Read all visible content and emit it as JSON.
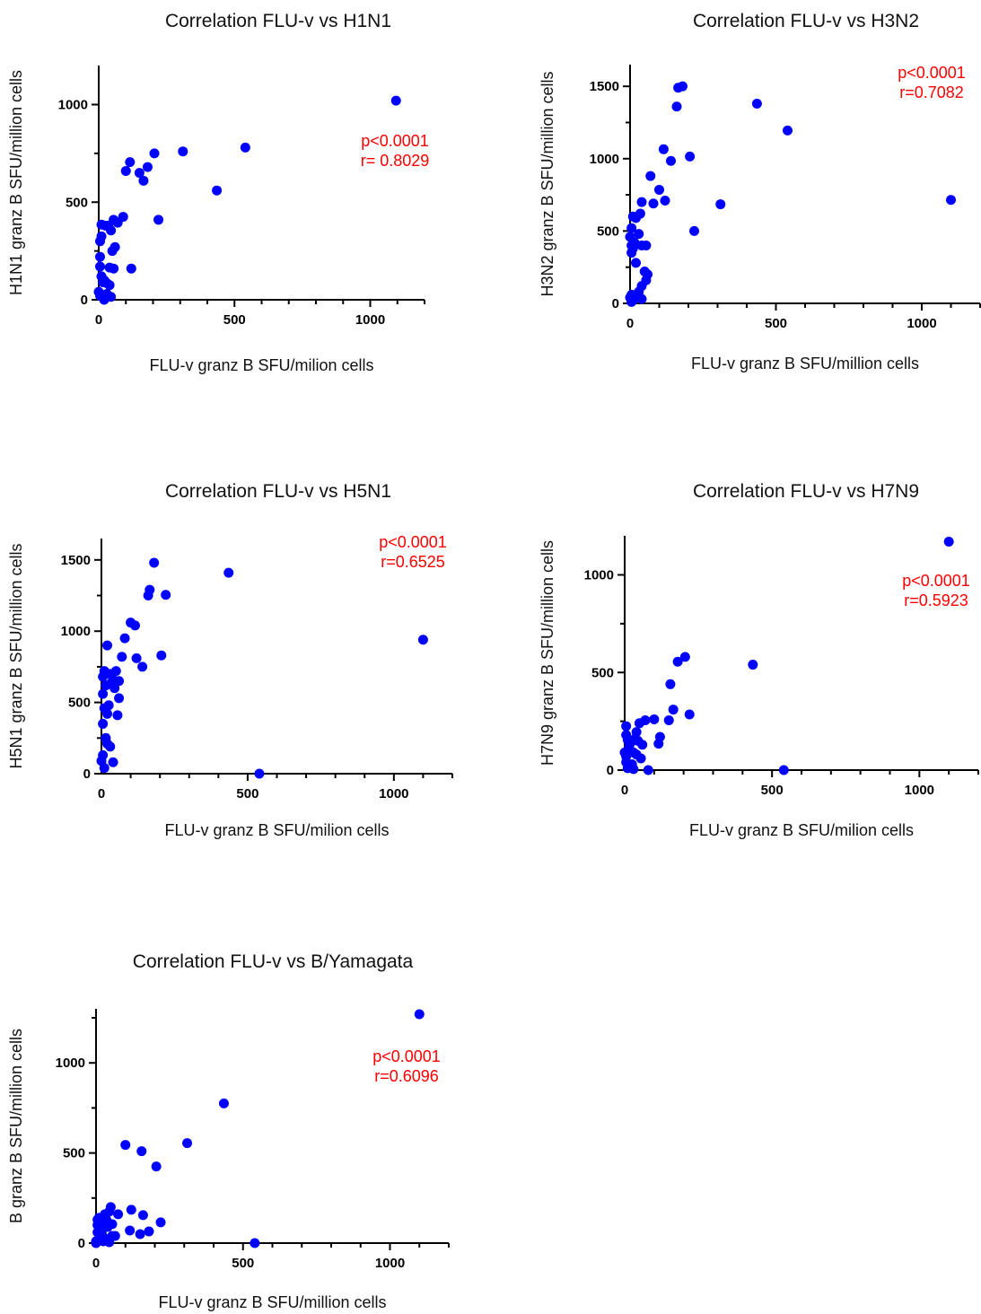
{
  "chart_data": [
    {
      "type": "scatter",
      "title": "Correlation FLU-v vs H1N1",
      "xlabel": "FLU-v granz B SFU/milion cells",
      "ylabel": "H1N1 granz B SFU/million cells",
      "xlim": [
        0,
        1200
      ],
      "ylim": [
        0,
        1200
      ],
      "xticks": [
        0,
        500,
        1000
      ],
      "yticks": [
        0,
        500,
        1000
      ],
      "annotations": [
        "p<0.0001",
        "r= 0.8029"
      ],
      "annotation_color": "#ff0000",
      "marker_color": "#0000ff",
      "series": [
        {
          "x": [
            1095,
            540,
            435,
            310,
            220,
            205,
            180,
            165,
            150,
            100,
            115,
            120,
            90,
            70,
            55,
            45,
            60,
            50,
            40,
            35,
            25,
            10,
            5,
            10,
            5,
            30,
            40,
            55,
            5,
            10,
            15,
            20,
            0,
            5,
            30,
            45,
            20
          ],
          "y": [
            1020,
            780,
            560,
            760,
            410,
            750,
            680,
            610,
            650,
            660,
            705,
            160,
            425,
            395,
            410,
            355,
            270,
            250,
            165,
            380,
            380,
            385,
            300,
            325,
            220,
            85,
            75,
            160,
            170,
            120,
            90,
            100,
            40,
            20,
            30,
            15,
            0
          ]
        }
      ]
    },
    {
      "type": "scatter",
      "title": "Correlation FLU-v vs H3N2",
      "xlabel": "FLU-v granz B SFU/million cells",
      "ylabel": "H3N2 granz B SFU/million cells",
      "xlim": [
        0,
        1200
      ],
      "ylim": [
        0,
        1650
      ],
      "xticks": [
        0,
        500,
        1000
      ],
      "yticks": [
        0,
        500,
        1000,
        1500
      ],
      "annotations": [
        "p<0.0001",
        "r=0.7082"
      ],
      "annotation_color": "#ff0000",
      "marker_color": "#0000ff",
      "series": [
        {
          "x": [
            1100,
            540,
            435,
            310,
            220,
            205,
            180,
            165,
            160,
            140,
            115,
            120,
            100,
            80,
            70,
            55,
            50,
            40,
            40,
            35,
            30,
            20,
            10,
            5,
            0,
            5,
            10,
            15,
            5,
            20,
            60,
            55,
            40,
            30,
            15,
            10,
            5,
            0,
            5,
            40
          ],
          "y": [
            715,
            1195,
            1380,
            685,
            500,
            1015,
            1500,
            1490,
            1360,
            985,
            1065,
            710,
            785,
            690,
            880,
            400,
            220,
            400,
            700,
            620,
            480,
            590,
            600,
            520,
            460,
            350,
            380,
            420,
            400,
            280,
            200,
            160,
            120,
            80,
            50,
            20,
            10,
            40,
            60,
            30
          ]
        }
      ]
    },
    {
      "type": "scatter",
      "title": "Correlation FLU-v vs H5N1",
      "xlabel": "FLU-v granz B SFU/milion cells",
      "ylabel": "H5N1 granz B SFU/million cells",
      "xlim": [
        0,
        1200
      ],
      "ylim": [
        0,
        1650
      ],
      "xticks": [
        0,
        500,
        1000
      ],
      "yticks": [
        0,
        500,
        1000,
        1500
      ],
      "annotations": [
        "p<0.0001",
        "r=0.6525"
      ],
      "annotation_color": "#ff0000",
      "marker_color": "#0000ff",
      "series": [
        {
          "x": [
            1100,
            540,
            435,
            220,
            205,
            180,
            165,
            160,
            140,
            120,
            115,
            100,
            80,
            70,
            60,
            50,
            45,
            40,
            35,
            30,
            20,
            10,
            5,
            5,
            15,
            20,
            10,
            5,
            25,
            55,
            60,
            40,
            5,
            15,
            20,
            10,
            30,
            0
          ],
          "y": [
            940,
            0,
            1410,
            1255,
            830,
            1480,
            1290,
            1250,
            750,
            810,
            1040,
            1060,
            950,
            820,
            650,
            720,
            600,
            660,
            640,
            700,
            900,
            720,
            680,
            560,
            620,
            420,
            460,
            350,
            480,
            410,
            530,
            80,
            130,
            250,
            210,
            40,
            190,
            90
          ]
        }
      ]
    },
    {
      "type": "scatter",
      "title": "Correlation FLU-v vs H7N9",
      "xlabel": "FLU-v granz B SFU/milion cells",
      "ylabel": "H7N9 granz B SFU/million cells",
      "xlim": [
        0,
        1200
      ],
      "ylim": [
        0,
        1200
      ],
      "xticks": [
        0,
        500,
        1000
      ],
      "yticks": [
        0,
        500,
        1000
      ],
      "annotations": [
        "p<0.0001",
        "r=0.5923"
      ],
      "annotation_color": "#ff0000",
      "marker_color": "#0000ff",
      "series": [
        {
          "x": [
            1100,
            540,
            435,
            220,
            205,
            180,
            165,
            155,
            150,
            120,
            115,
            100,
            80,
            70,
            60,
            50,
            45,
            40,
            35,
            30,
            20,
            10,
            5,
            5,
            15,
            25,
            40,
            55,
            5,
            10,
            20,
            30,
            0,
            5
          ],
          "y": [
            1170,
            0,
            540,
            285,
            580,
            555,
            310,
            440,
            255,
            170,
            135,
            260,
            0,
            255,
            130,
            240,
            150,
            195,
            160,
            90,
            140,
            155,
            180,
            225,
            120,
            30,
            80,
            60,
            40,
            10,
            20,
            5,
            90,
            70
          ]
        }
      ]
    },
    {
      "type": "scatter",
      "title": "Correlation FLU-v vs B/Yamagata",
      "xlabel": "FLU-v granz B SFU/million cells",
      "ylabel": "B granz B SFU/million cells",
      "xlim": [
        0,
        1200
      ],
      "ylim": [
        0,
        1300
      ],
      "xticks": [
        0,
        500,
        1000
      ],
      "yticks": [
        0,
        500,
        1000
      ],
      "annotations": [
        "p<0.0001",
        "r=0.6096"
      ],
      "annotation_color": "#ff0000",
      "marker_color": "#0000ff",
      "series": [
        {
          "x": [
            1100,
            540,
            435,
            310,
            220,
            205,
            180,
            160,
            155,
            150,
            120,
            115,
            100,
            75,
            65,
            55,
            50,
            45,
            40,
            35,
            30,
            20,
            10,
            5,
            5,
            15,
            25,
            40,
            55,
            5,
            10,
            20,
            30,
            0,
            0,
            45
          ],
          "y": [
            1270,
            0,
            775,
            555,
            115,
            425,
            65,
            155,
            510,
            50,
            185,
            70,
            545,
            160,
            40,
            105,
            200,
            175,
            90,
            130,
            160,
            120,
            140,
            100,
            60,
            30,
            10,
            20,
            40,
            130,
            75,
            50,
            25,
            10,
            0,
            5
          ]
        }
      ]
    }
  ]
}
